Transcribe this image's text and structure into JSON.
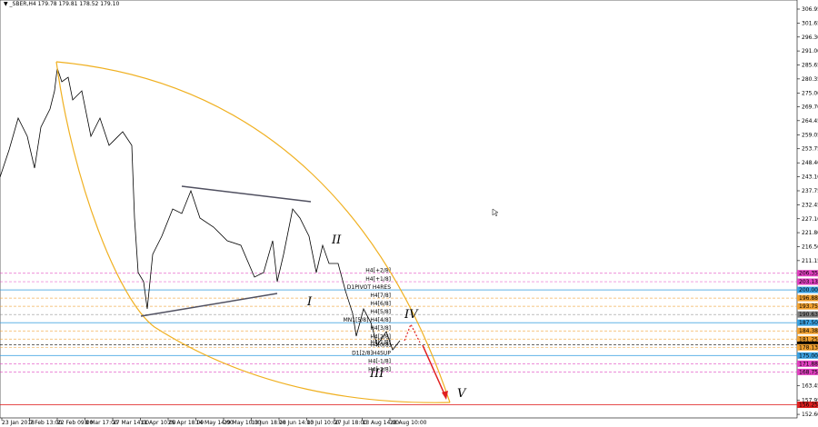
{
  "header": {
    "symbol": "_SBER,H4",
    "quote": "179.78 179.81 178.52 179.10"
  },
  "price_axis": {
    "labels": [
      "306.95",
      "301.65",
      "296.30",
      "291.00",
      "285.65",
      "280.35",
      "275.00",
      "269.70",
      "264.45",
      "259.05",
      "253.75",
      "248.40",
      "243.10",
      "237.75",
      "232.45",
      "227.10",
      "221.80",
      "216.50",
      "211.15",
      "163.45",
      "157.95",
      "152.60"
    ]
  },
  "levels": [
    {
      "price": "206.35",
      "color": "#e040c0",
      "note": "H4[+2/8]"
    },
    {
      "price": "203.13",
      "color": "#e040c0",
      "note": "H4[+1/8]"
    },
    {
      "price": "200.00",
      "color": "#3aa0e0",
      "note": "D1PIVOT H4RES"
    },
    {
      "price": "196.88",
      "color": "#f0a030",
      "note": "H4[7/8]"
    },
    {
      "price": "193.75",
      "color": "#f0a030",
      "note": "H4[6/8]"
    },
    {
      "price": "190.63",
      "color": "#808080",
      "note": "H4[5/8]"
    },
    {
      "price": "187.50",
      "color": "#3aa0e0",
      "note": "MN1[5/8] H4[4/8]"
    },
    {
      "price": "184.38",
      "color": "#f0a030",
      "note": "H4[3/8]"
    },
    {
      "price": "181.25",
      "color": "#f0a030",
      "note": "H4[2/8]"
    },
    {
      "price": "179.10",
      "color": "#000000",
      "note": "H4[1/8]"
    },
    {
      "price": "178.13",
      "color": "#f0a030",
      "note": "H4[0/8]"
    },
    {
      "price": "175.00",
      "color": "#3aa0e0",
      "note": "D1[2/8]H4SUP"
    },
    {
      "price": "171.88",
      "color": "#e040c0",
      "note": "H4[-1/8]"
    },
    {
      "price": "168.75",
      "color": "#e040c0",
      "note": "H4[-2/8]"
    },
    {
      "price": "156.25",
      "color": "#e02020",
      "note": ""
    }
  ],
  "time_axis": {
    "labels": [
      "23 Jan 2018",
      "7 Feb 13:00",
      "22 Feb 09:00",
      "8 Mar 17:00",
      "27 Mar 14:00",
      "11 Apr 10:00",
      "25 Apr 18:00",
      "14 May 14:00",
      "29 May 10:00",
      "13 Jun 18:00",
      "28 Jun 14:00",
      "13 Jul 10:00",
      "27 Jul 18:00",
      "13 Aug 14:00",
      "28 Aug 10:00"
    ]
  },
  "waves": [
    "I",
    "II",
    "III",
    "IV",
    "V"
  ]
}
